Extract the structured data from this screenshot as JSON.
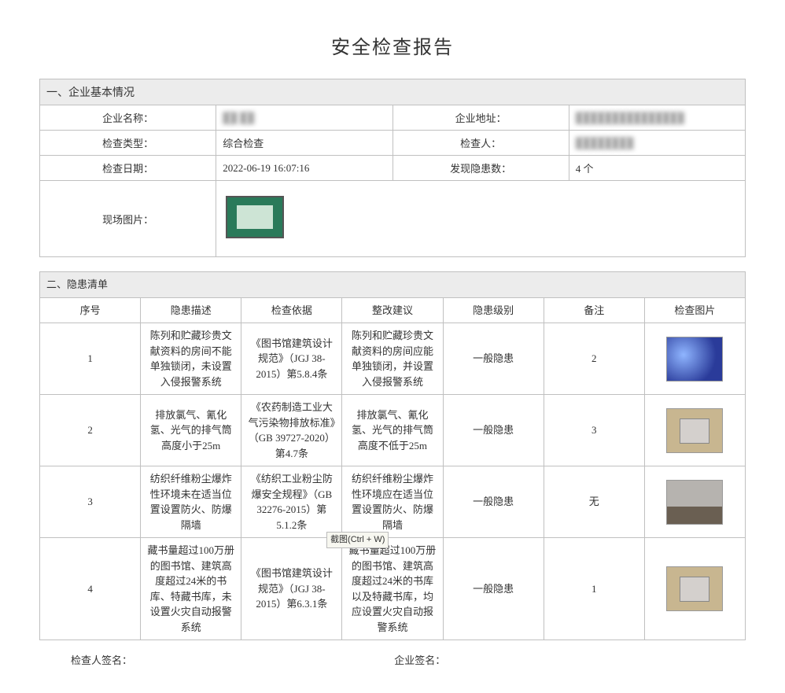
{
  "title": "安全检查报告",
  "section1": {
    "heading": "一、企业基本情况",
    "labels": {
      "company_name": "企业名称：",
      "company_addr": "企业地址：",
      "check_type": "检查类型：",
      "inspector": "检查人：",
      "check_date": "检查日期：",
      "hazard_count": "发现隐患数：",
      "site_photo": "现场图片："
    },
    "values": {
      "company_name": "██ ██",
      "company_addr": "███████████████",
      "check_type": "综合检查",
      "inspector": "████████",
      "check_date": "2022-06-19 16:07:16",
      "hazard_count": "4 个"
    }
  },
  "section2": {
    "heading": "二、隐患清单",
    "columns": {
      "idx": "序号",
      "desc": "隐患描述",
      "basis": "检查依据",
      "suggestion": "整改建议",
      "level": "隐患级别",
      "note": "备注",
      "image": "检查图片"
    },
    "rows": [
      {
        "idx": "1",
        "desc": "陈列和贮藏珍贵文献资料的房间不能单独锁闭，未设置入侵报警系统",
        "basis": "《图书馆建筑设计规范》（JGJ 38-2015）第5.8.4条",
        "suggestion": "陈列和贮藏珍贵文献资料的房间应能单独锁闭，并设置入侵报警系统",
        "level": "一般隐患",
        "note": "2",
        "img": "blue"
      },
      {
        "idx": "2",
        "desc": "排放氯气、氰化氢、光气的排气筒高度小于25m",
        "basis": "《农药制造工业大气污染物排放标准》（GB 39727-2020）第4.7条",
        "suggestion": "排放氯气、氰化氢、光气的排气筒高度不低于25m",
        "level": "一般隐患",
        "note": "3",
        "img": "machine"
      },
      {
        "idx": "3",
        "desc": "纺织纤维粉尘爆炸性环境未在适当位置设置防火、防爆隔墙",
        "basis": "《纺织工业粉尘防爆安全规程》（GB 32276-2015）第5.1.2条",
        "suggestion": "纺织纤维粉尘爆炸性环境应在适当位置设置防火、防爆隔墙",
        "level": "一般隐患",
        "note": "无",
        "img": "room"
      },
      {
        "idx": "4",
        "desc": "藏书量超过100万册的图书馆、建筑高度超过24米的书库、特藏书库，未设置火灾自动报警系统",
        "basis": "《图书馆建筑设计规范》（JGJ 38-2015）第6.3.1条",
        "suggestion": "藏书量超过100万册的图书馆、建筑高度超过24米的书库以及特藏书库，均应设置火灾自动报警系统",
        "level": "一般隐患",
        "note": "1",
        "img": "machine"
      }
    ]
  },
  "tooltip": "截图(Ctrl + W)",
  "signatures": {
    "inspector": "检查人签名：",
    "company": "企业签名："
  }
}
